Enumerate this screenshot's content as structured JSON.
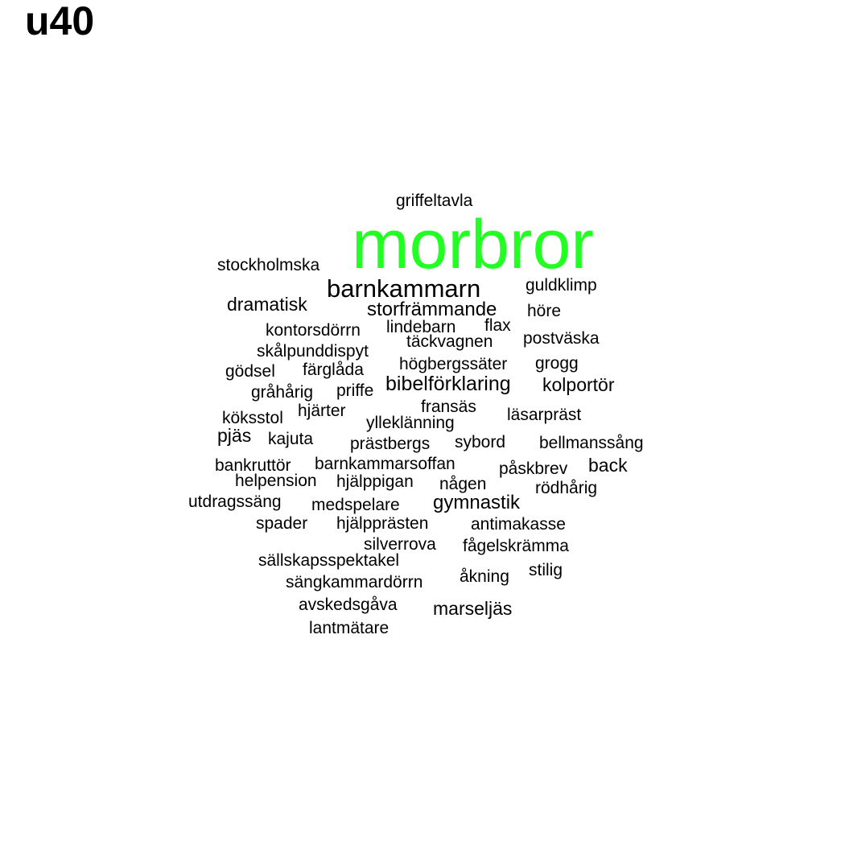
{
  "title": "u40",
  "chart_data": {
    "type": "wordcloud",
    "title": "u40",
    "highlight_color": "#22ff22",
    "default_color": "#000000",
    "words": [
      {
        "text": "morbror",
        "weight": 100,
        "highlight": true
      },
      {
        "text": "barnkammarn",
        "weight": 30
      },
      {
        "text": "griffeltavla",
        "weight": 20
      },
      {
        "text": "stockholmska",
        "weight": 20
      },
      {
        "text": "guldklimp",
        "weight": 20
      },
      {
        "text": "dramatisk",
        "weight": 21
      },
      {
        "text": "storfrämmande",
        "weight": 22
      },
      {
        "text": "höre",
        "weight": 20
      },
      {
        "text": "kontorsdörrn",
        "weight": 20
      },
      {
        "text": "lindebarn",
        "weight": 20
      },
      {
        "text": "flax",
        "weight": 20
      },
      {
        "text": "täckvagnen",
        "weight": 20
      },
      {
        "text": "postväska",
        "weight": 20
      },
      {
        "text": "skålpunddispyt",
        "weight": 20
      },
      {
        "text": "högbergssäter",
        "weight": 20
      },
      {
        "text": "grogg",
        "weight": 20
      },
      {
        "text": "gödsel",
        "weight": 20
      },
      {
        "text": "färglåda",
        "weight": 20
      },
      {
        "text": "bibelförklaring",
        "weight": 23
      },
      {
        "text": "kolportör",
        "weight": 22
      },
      {
        "text": "gråhårig",
        "weight": 20
      },
      {
        "text": "priffe",
        "weight": 20
      },
      {
        "text": "fransäs",
        "weight": 20
      },
      {
        "text": "köksstol",
        "weight": 20
      },
      {
        "text": "hjärter",
        "weight": 20
      },
      {
        "text": "ylleklänning",
        "weight": 20
      },
      {
        "text": "läsarpräst",
        "weight": 20
      },
      {
        "text": "pjäs",
        "weight": 21
      },
      {
        "text": "kajuta",
        "weight": 20
      },
      {
        "text": "prästbergs",
        "weight": 20
      },
      {
        "text": "sybord",
        "weight": 20
      },
      {
        "text": "bellmanssång",
        "weight": 20
      },
      {
        "text": "bankruttör",
        "weight": 20
      },
      {
        "text": "barnkammarsoffan",
        "weight": 20
      },
      {
        "text": "påskbrev",
        "weight": 20
      },
      {
        "text": "back",
        "weight": 21
      },
      {
        "text": "helpension",
        "weight": 20
      },
      {
        "text": "hjälppigan",
        "weight": 20
      },
      {
        "text": "någen",
        "weight": 20
      },
      {
        "text": "rödhårig",
        "weight": 20
      },
      {
        "text": "utdragssäng",
        "weight": 20
      },
      {
        "text": "medspelare",
        "weight": 20
      },
      {
        "text": "gymnastik",
        "weight": 22
      },
      {
        "text": "spader",
        "weight": 20
      },
      {
        "text": "hjälpprästen",
        "weight": 20
      },
      {
        "text": "antimakasse",
        "weight": 20
      },
      {
        "text": "silverrova",
        "weight": 20
      },
      {
        "text": "fågelskrämma",
        "weight": 20
      },
      {
        "text": "sällskapsspektakel",
        "weight": 20
      },
      {
        "text": "stilig",
        "weight": 20
      },
      {
        "text": "sängkammardörrn",
        "weight": 20
      },
      {
        "text": "åkning",
        "weight": 20
      },
      {
        "text": "avskedsgåva",
        "weight": 20
      },
      {
        "text": "marseljäs",
        "weight": 21
      },
      {
        "text": "lantmätare",
        "weight": 20
      }
    ]
  }
}
